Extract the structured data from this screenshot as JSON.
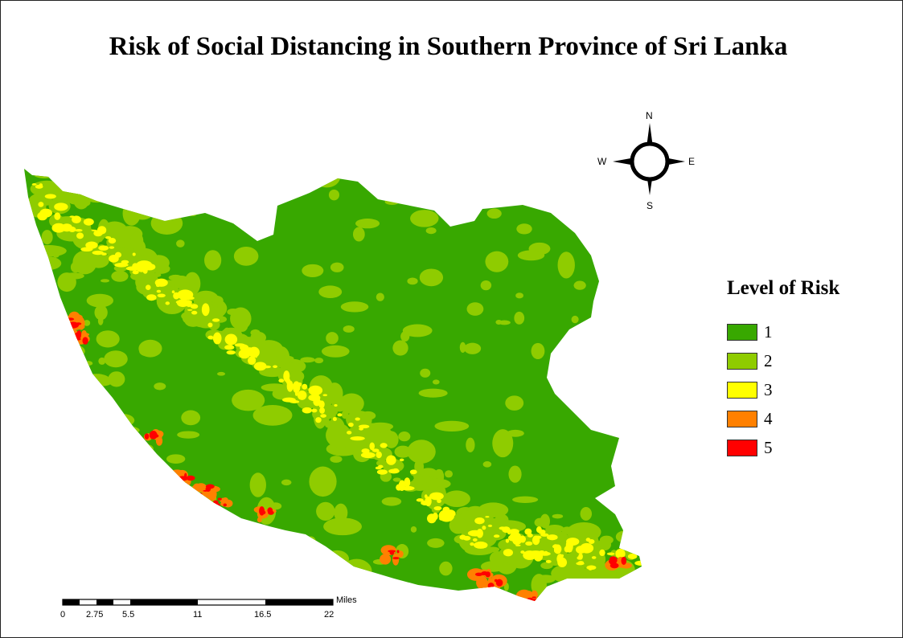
{
  "title": "Risk of Social Distancing in Southern Province of Sri Lanka",
  "legend": {
    "title": "Level of Risk",
    "items": [
      {
        "label": "1",
        "color": "#38a800"
      },
      {
        "label": "2",
        "color": "#8fcc00"
      },
      {
        "label": "3",
        "color": "#ffff00"
      },
      {
        "label": "4",
        "color": "#ff8000"
      },
      {
        "label": "5",
        "color": "#ff0000"
      }
    ]
  },
  "compass": {
    "north": "N",
    "south": "S",
    "east": "E",
    "west": "W"
  },
  "scale_bar": {
    "unit": "Miles",
    "labels": [
      "0",
      "2.75",
      "5.5",
      "11",
      "16.5",
      "22"
    ]
  }
}
